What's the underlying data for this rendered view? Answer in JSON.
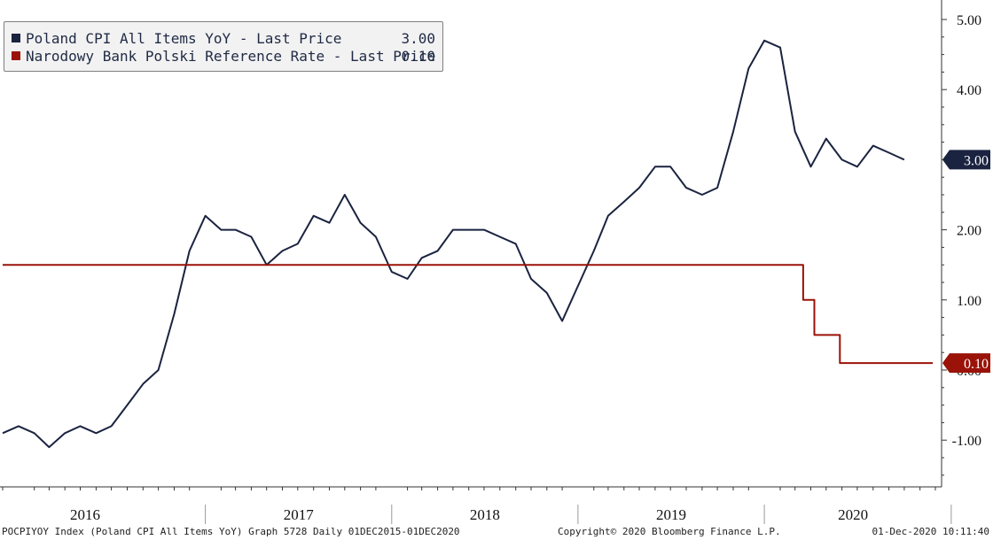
{
  "chart_data": {
    "type": "line",
    "title": "",
    "xlabel": "",
    "ylabel": "",
    "x_range": [
      "2015-12-01",
      "2020-12-01"
    ],
    "ylim": [
      -1.5,
      5.2
    ],
    "y_ticks": [
      5,
      4,
      3,
      2,
      1,
      0,
      -1
    ],
    "y_tick_labels": [
      "5.00",
      "4.00",
      "3.00",
      "2.00",
      "1.00",
      "0.00",
      "-1.00"
    ],
    "x_tick_labels": [
      "2016",
      "2017",
      "2018",
      "2019",
      "2020"
    ],
    "grid": false,
    "legend_position": "top-left",
    "series": [
      {
        "name": "Poland CPI All Items YoY - Last Price",
        "last_value": "3.00",
        "color": "#1a2340",
        "step": false,
        "points": [
          [
            "2015-12-01",
            -0.9
          ],
          [
            "2016-01-01",
            -0.8
          ],
          [
            "2016-02-01",
            -0.9
          ],
          [
            "2016-03-01",
            -1.1
          ],
          [
            "2016-04-01",
            -0.9
          ],
          [
            "2016-05-01",
            -0.8
          ],
          [
            "2016-06-01",
            -0.9
          ],
          [
            "2016-07-01",
            -0.8
          ],
          [
            "2016-08-01",
            -0.5
          ],
          [
            "2016-09-01",
            -0.2
          ],
          [
            "2016-10-01",
            0.0
          ],
          [
            "2016-11-01",
            0.8
          ],
          [
            "2016-12-01",
            1.7
          ],
          [
            "2017-01-01",
            2.2
          ],
          [
            "2017-02-01",
            2.0
          ],
          [
            "2017-03-01",
            2.0
          ],
          [
            "2017-04-01",
            1.9
          ],
          [
            "2017-05-01",
            1.5
          ],
          [
            "2017-06-01",
            1.7
          ],
          [
            "2017-07-01",
            1.8
          ],
          [
            "2017-08-01",
            2.2
          ],
          [
            "2017-09-01",
            2.1
          ],
          [
            "2017-10-01",
            2.5
          ],
          [
            "2017-11-01",
            2.1
          ],
          [
            "2017-12-01",
            1.9
          ],
          [
            "2018-01-01",
            1.4
          ],
          [
            "2018-02-01",
            1.3
          ],
          [
            "2018-03-01",
            1.6
          ],
          [
            "2018-04-01",
            1.7
          ],
          [
            "2018-05-01",
            2.0
          ],
          [
            "2018-06-01",
            2.0
          ],
          [
            "2018-07-01",
            2.0
          ],
          [
            "2018-08-01",
            1.9
          ],
          [
            "2018-09-01",
            1.8
          ],
          [
            "2018-10-01",
            1.3
          ],
          [
            "2018-11-01",
            1.1
          ],
          [
            "2018-12-01",
            0.7
          ],
          [
            "2019-01-01",
            1.2
          ],
          [
            "2019-02-01",
            1.7
          ],
          [
            "2019-03-01",
            2.2
          ],
          [
            "2019-04-01",
            2.4
          ],
          [
            "2019-05-01",
            2.6
          ],
          [
            "2019-06-01",
            2.9
          ],
          [
            "2019-07-01",
            2.9
          ],
          [
            "2019-08-01",
            2.6
          ],
          [
            "2019-09-01",
            2.5
          ],
          [
            "2019-10-01",
            2.6
          ],
          [
            "2019-11-01",
            3.4
          ],
          [
            "2019-12-01",
            4.3
          ],
          [
            "2020-01-01",
            4.7
          ],
          [
            "2020-02-01",
            4.6
          ],
          [
            "2020-03-01",
            3.4
          ],
          [
            "2020-04-01",
            2.9
          ],
          [
            "2020-05-01",
            3.3
          ],
          [
            "2020-06-01",
            3.0
          ],
          [
            "2020-07-01",
            2.9
          ],
          [
            "2020-08-01",
            3.2
          ],
          [
            "2020-09-01",
            3.1
          ],
          [
            "2020-10-01",
            3.0
          ]
        ]
      },
      {
        "name": "Narodowy Bank Polski Reference Rate - Last Price",
        "last_value": "0.10",
        "color": "#9a1208",
        "step": true,
        "points": [
          [
            "2015-12-01",
            1.5
          ],
          [
            "2020-03-17",
            1.5
          ],
          [
            "2020-03-17",
            1.0
          ],
          [
            "2020-04-08",
            1.0
          ],
          [
            "2020-04-08",
            0.5
          ],
          [
            "2020-05-28",
            0.5
          ],
          [
            "2020-05-28",
            0.1
          ],
          [
            "2020-11-26",
            0.1
          ]
        ]
      }
    ]
  },
  "footer": {
    "left": "POCPIYOY Index (Poland CPI All Items YoY) Graph 5728  Daily 01DEC2015-01DEC2020",
    "center": "Copyright© 2020 Bloomberg Finance L.P.",
    "right": "01-Dec-2020 10:11:40"
  }
}
